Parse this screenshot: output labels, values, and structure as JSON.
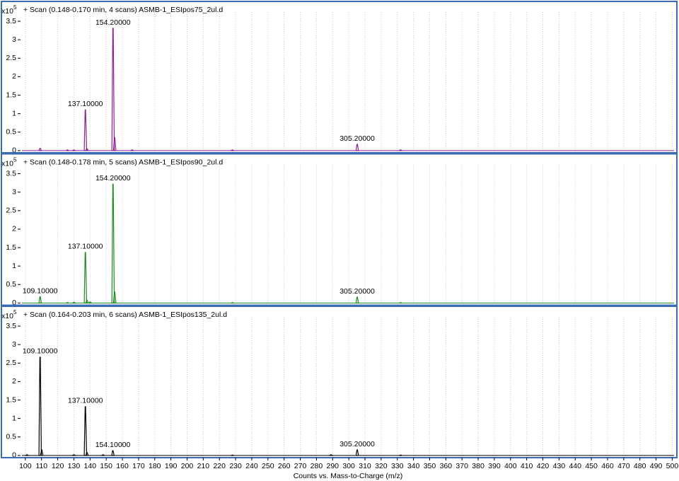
{
  "chart_data": [
    {
      "type": "spectrum",
      "title": "+ Scan (0.148-0.170 min, 4 scans) ASMB-1_ESIpos75_2ul.d",
      "y_multiplier": "x10",
      "y_exponent": "5",
      "color": "#8e1f8e",
      "grid": "x",
      "xlim": [
        97,
        502
      ],
      "xticks": [
        100,
        110,
        120,
        130,
        140,
        150,
        160,
        170,
        180,
        190,
        200,
        210,
        220,
        230,
        240,
        250,
        260,
        270,
        280,
        290,
        300,
        310,
        320,
        330,
        340,
        350,
        360,
        370,
        380,
        390,
        400,
        410,
        420,
        430,
        440,
        450,
        460,
        470,
        480,
        490,
        500
      ],
      "ylim": [
        -0.06,
        3.75
      ],
      "yticks": [
        0,
        0.5,
        1,
        1.5,
        2,
        2.5,
        3,
        3.5
      ],
      "x": [
        109.1,
        126,
        130,
        137.1,
        138.1,
        154.2,
        155.2,
        166,
        228,
        305.2,
        332
      ],
      "values": [
        0.06,
        0.02,
        0.02,
        1.1,
        0.05,
        3.31,
        0.35,
        0.02,
        0.02,
        0.17,
        0.02
      ],
      "labels": [
        null,
        null,
        null,
        "137.10000",
        null,
        "154.20000",
        null,
        null,
        null,
        "305.20000",
        null
      ]
    },
    {
      "type": "spectrum",
      "title": "+ Scan (0.148-0.178 min, 5 scans) ASMB-1_ESIpos90_2ul.d",
      "y_multiplier": "x10",
      "y_exponent": "5",
      "color": "#1f8a1f",
      "grid": "x",
      "xlim": [
        97,
        502
      ],
      "xticks": [
        100,
        110,
        120,
        130,
        140,
        150,
        160,
        170,
        180,
        190,
        200,
        210,
        220,
        230,
        240,
        250,
        260,
        270,
        280,
        290,
        300,
        310,
        320,
        330,
        340,
        350,
        360,
        370,
        380,
        390,
        400,
        410,
        420,
        430,
        440,
        450,
        460,
        470,
        480,
        490,
        500
      ],
      "ylim": [
        -0.06,
        3.75
      ],
      "yticks": [
        0,
        0.5,
        1,
        1.5,
        2,
        2.5,
        3,
        3.5
      ],
      "x": [
        109.1,
        126,
        130,
        137.1,
        138.1,
        140,
        154.2,
        155.2,
        228,
        305.2,
        332
      ],
      "values": [
        0.17,
        0.01,
        0.02,
        1.37,
        0.08,
        0.03,
        3.22,
        0.3,
        0.01,
        0.16,
        0.01
      ],
      "labels": [
        "109.10000",
        null,
        null,
        "137.10000",
        null,
        null,
        "154.20000",
        null,
        null,
        "305.20000",
        null
      ]
    },
    {
      "type": "spectrum",
      "title": "+ Scan (0.164-0.203 min, 6 scans) ASMB-1_ESIpos135_2ul.d",
      "y_multiplier": "x10",
      "y_exponent": "5",
      "color": "#000000",
      "grid": "x",
      "xlabel": "Counts vs. Mass-to-Charge (m/z)",
      "xlim": [
        97,
        502
      ],
      "xticks": [
        100,
        110,
        120,
        130,
        140,
        150,
        160,
        170,
        180,
        190,
        200,
        210,
        220,
        230,
        240,
        250,
        260,
        270,
        280,
        290,
        300,
        310,
        320,
        330,
        340,
        350,
        360,
        370,
        380,
        390,
        400,
        410,
        420,
        430,
        440,
        450,
        460,
        470,
        480,
        490,
        500
      ],
      "ylim": [
        -0.06,
        3.75
      ],
      "yticks": [
        0,
        0.5,
        1,
        1.5,
        2,
        2.5,
        3,
        3.5
      ],
      "x": [
        101,
        109.1,
        110.1,
        130,
        137.1,
        138.1,
        148,
        154.1,
        228,
        289,
        305.2,
        332
      ],
      "values": [
        0.02,
        2.66,
        0.15,
        0.02,
        1.32,
        0.08,
        0.02,
        0.13,
        0.01,
        0.02,
        0.15,
        0.01
      ],
      "labels": [
        null,
        "109.10000",
        null,
        null,
        "137.10000",
        null,
        null,
        "154.10000",
        null,
        null,
        "305.20000",
        null
      ]
    }
  ]
}
